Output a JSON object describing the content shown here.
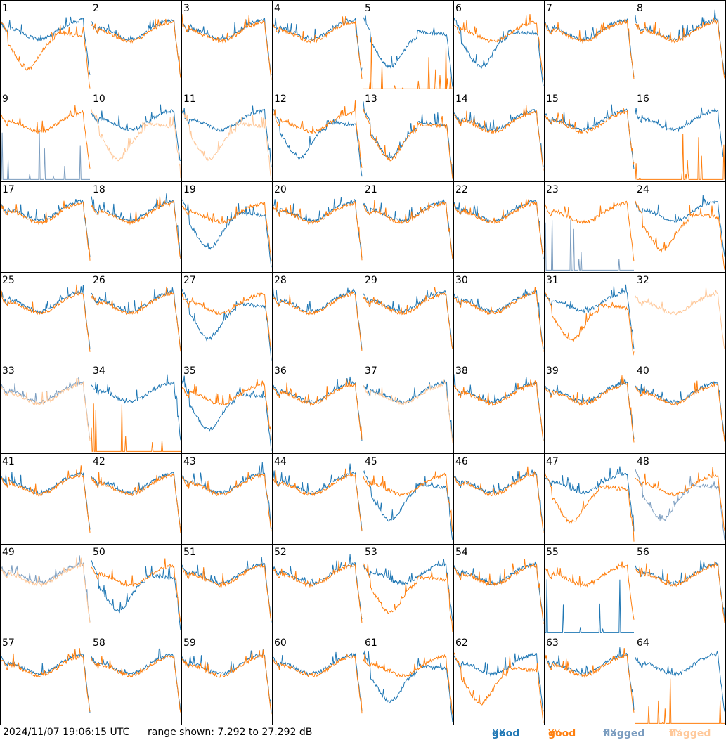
{
  "footer": {
    "timestamp": "2024/11/07 19:06:15 UTC",
    "range_text": "range shown: 7.292 to 27.292 dB"
  },
  "legend": [
    {
      "key": "good_xx",
      "label": "good",
      "pol": "XX",
      "color": "#1f77b4"
    },
    {
      "key": "good_yy",
      "label": "good",
      "pol": "YY",
      "color": "#ff7f0e"
    },
    {
      "key": "flagged_xx",
      "label": "flagged",
      "pol": "XX",
      "color": "#7a9cbf"
    },
    {
      "key": "flagged_yy",
      "label": "flagged",
      "pol": "YY",
      "color": "#ffc899"
    }
  ],
  "chart_data": {
    "type": "line",
    "title": "",
    "xlabel": "",
    "ylabel": "",
    "ylim_db": [
      7.292,
      27.292
    ],
    "grid_layout": {
      "rows": 8,
      "cols": 8
    },
    "series_names": [
      "good XX",
      "good YY",
      "flagged XX",
      "flagged YY"
    ],
    "note_shape_codes": "n=normal, dip=deep low, dead=flat/absent, lowL=low left half",
    "panels": [
      {
        "id": "1",
        "xx": "n",
        "yy": "dip"
      },
      {
        "id": "2",
        "xx": "n",
        "yy": "n"
      },
      {
        "id": "3",
        "xx": "n",
        "yy": "n"
      },
      {
        "id": "4",
        "xx": "n",
        "yy": "n"
      },
      {
        "id": "5",
        "xx": "dip",
        "yy": "dead"
      },
      {
        "id": "6",
        "xx": "dip",
        "yy": "n"
      },
      {
        "id": "7",
        "xx": "n",
        "yy": "n"
      },
      {
        "id": "8",
        "xx": "n",
        "yy": "n"
      },
      {
        "id": "9",
        "xx": "dead",
        "yy": "n",
        "xx_flagged": true
      },
      {
        "id": "10",
        "xx": "n",
        "yy": "dip",
        "yy_flagged": true
      },
      {
        "id": "11",
        "xx": "n",
        "yy": "dip",
        "yy_flagged": true
      },
      {
        "id": "12",
        "xx": "dip",
        "yy": "n"
      },
      {
        "id": "13",
        "xx": "dip",
        "yy": "dip"
      },
      {
        "id": "14",
        "xx": "n",
        "yy": "n"
      },
      {
        "id": "15",
        "xx": "n",
        "yy": "n"
      },
      {
        "id": "16",
        "xx": "n",
        "yy": "dead"
      },
      {
        "id": "17",
        "xx": "n",
        "yy": "n"
      },
      {
        "id": "18",
        "xx": "n",
        "yy": "n"
      },
      {
        "id": "19",
        "xx": "dip",
        "yy": "n"
      },
      {
        "id": "20",
        "xx": "n",
        "yy": "n"
      },
      {
        "id": "21",
        "xx": "n",
        "yy": "n"
      },
      {
        "id": "22",
        "xx": "n",
        "yy": "n"
      },
      {
        "id": "23",
        "xx": "dead",
        "yy": "n",
        "xx_flagged": true
      },
      {
        "id": "24",
        "xx": "n",
        "yy": "dip"
      },
      {
        "id": "25",
        "xx": "n",
        "yy": "n"
      },
      {
        "id": "26",
        "xx": "n",
        "yy": "n"
      },
      {
        "id": "27",
        "xx": "dip",
        "yy": "n"
      },
      {
        "id": "28",
        "xx": "n",
        "yy": "n"
      },
      {
        "id": "29",
        "xx": "n",
        "yy": "n"
      },
      {
        "id": "30",
        "xx": "n",
        "yy": "n"
      },
      {
        "id": "31",
        "xx": "n",
        "yy": "dip"
      },
      {
        "id": "32",
        "xx": "none",
        "yy": "n",
        "yy_flagged": true
      },
      {
        "id": "33",
        "xx": "n",
        "yy": "n",
        "xx_flagged": true,
        "yy_flagged": true
      },
      {
        "id": "34",
        "xx": "n",
        "yy": "dead"
      },
      {
        "id": "35",
        "xx": "dip",
        "yy": "n"
      },
      {
        "id": "36",
        "xx": "n",
        "yy": "n"
      },
      {
        "id": "37",
        "xx": "n",
        "yy": "n",
        "yy_flagged": true
      },
      {
        "id": "38",
        "xx": "n",
        "yy": "n"
      },
      {
        "id": "39",
        "xx": "n",
        "yy": "n"
      },
      {
        "id": "40",
        "xx": "n",
        "yy": "n"
      },
      {
        "id": "41",
        "xx": "n",
        "yy": "n"
      },
      {
        "id": "42",
        "xx": "n",
        "yy": "n"
      },
      {
        "id": "43",
        "xx": "n",
        "yy": "n"
      },
      {
        "id": "44",
        "xx": "n",
        "yy": "n"
      },
      {
        "id": "45",
        "xx": "dip",
        "yy": "n"
      },
      {
        "id": "46",
        "xx": "n",
        "yy": "n"
      },
      {
        "id": "47",
        "xx": "n",
        "yy": "dip"
      },
      {
        "id": "48",
        "xx": "dip",
        "yy": "n",
        "xx_flagged": true
      },
      {
        "id": "49",
        "xx": "n",
        "yy": "n",
        "xx_flagged": true,
        "yy_flagged": true
      },
      {
        "id": "50",
        "xx": "dip",
        "yy": "n"
      },
      {
        "id": "51",
        "xx": "n",
        "yy": "n"
      },
      {
        "id": "52",
        "xx": "n",
        "yy": "n"
      },
      {
        "id": "53",
        "xx": "n",
        "yy": "dip"
      },
      {
        "id": "54",
        "xx": "n",
        "yy": "n"
      },
      {
        "id": "55",
        "xx": "dead",
        "yy": "n"
      },
      {
        "id": "56",
        "xx": "n",
        "yy": "n"
      },
      {
        "id": "57",
        "xx": "n",
        "yy": "n"
      },
      {
        "id": "58",
        "xx": "n",
        "yy": "n"
      },
      {
        "id": "59",
        "xx": "n",
        "yy": "n"
      },
      {
        "id": "60",
        "xx": "n",
        "yy": "n"
      },
      {
        "id": "61",
        "xx": "dip",
        "yy": "n"
      },
      {
        "id": "62",
        "xx": "n",
        "yy": "dip"
      },
      {
        "id": "63",
        "xx": "n",
        "yy": "n"
      },
      {
        "id": "64",
        "xx": "n",
        "yy": "dead"
      }
    ]
  }
}
